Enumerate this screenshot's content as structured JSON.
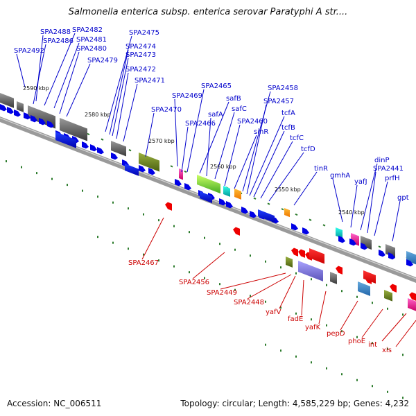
{
  "title": "Salmonella enterica subsp. enterica serovar Paratyphi A str....",
  "footer": {
    "accession": "Accession: NC_006511",
    "summary": "Topology: circular; Length: 4,585,229 bp; Genes: 4,232"
  },
  "colors": {
    "top_labels": "#0000cc",
    "bottom_labels": "#cc0000",
    "backbone": "#999999",
    "tick": "#2a7a2a"
  },
  "ruler": [
    "2590 kbp",
    "2580 kbp",
    "2570 kbp",
    "2560 kbp",
    "2550 kbp",
    "2540 kbp"
  ],
  "top_genes": [
    "SPA2492",
    "SPA2488",
    "SPA2486",
    "SPA2482",
    "SPA2481",
    "SPA2480",
    "SPA2479",
    "SPA2475",
    "SPA2474",
    "SPA2473",
    "SPA2472",
    "SPA2471",
    "SPA2470",
    "SPA2469",
    "SPA2466",
    "SPA2465",
    "safB",
    "safA",
    "safC",
    "SPA2460",
    "sinR",
    "SPA2458",
    "SPA2457",
    "tcfA",
    "tcfB",
    "tcfC",
    "tcfD",
    "tinR",
    "gmhA",
    "yafJ",
    "dinP",
    "SPA2441",
    "prfH",
    "gpt"
  ],
  "bottom_genes": [
    "SPA2467",
    "SPA2456",
    "SPA2449",
    "SPA2448",
    "yafV",
    "fadE",
    "yafK",
    "pepD",
    "phoE",
    "int",
    "xis"
  ]
}
